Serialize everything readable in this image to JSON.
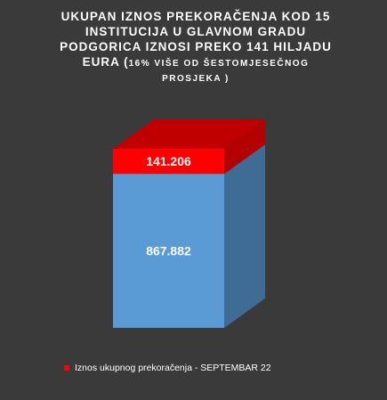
{
  "title": {
    "line1": "UKUPAN IZNOS PREKORAČENJA  KOD 15",
    "line2": "INSTITUCIJA U GLAVNOM GRADU",
    "line3": "PODGORICA IZNOSI PREKO 141 HILJADU",
    "line4_main": "EURA (",
    "line4_small": "16% VIŠE OD ŠESTOMJESEČNOG",
    "line5_small": "PROSJEKA  )"
  },
  "chart_data": {
    "type": "bar",
    "stacked": true,
    "style": "3d-column",
    "categories": [
      "SEPTEMBAR 22"
    ],
    "series": [
      {
        "name": "",
        "values": [
          867882
        ],
        "label": "867.882",
        "color": "#5b9bd5",
        "side_color": "#3f6c94",
        "top_color": "#4a80b0"
      },
      {
        "name": "Iznos ukupnog prekoračenja",
        "values": [
          141206
        ],
        "label": "141.206",
        "color": "#ff0000",
        "side_color": "#b30000",
        "top_color": "#c00000"
      }
    ],
    "legend": {
      "placement": "bottom-left",
      "text": "Iznos ukupnog prekoračenja -  SEPTEMBAR 22"
    },
    "grid": false
  }
}
